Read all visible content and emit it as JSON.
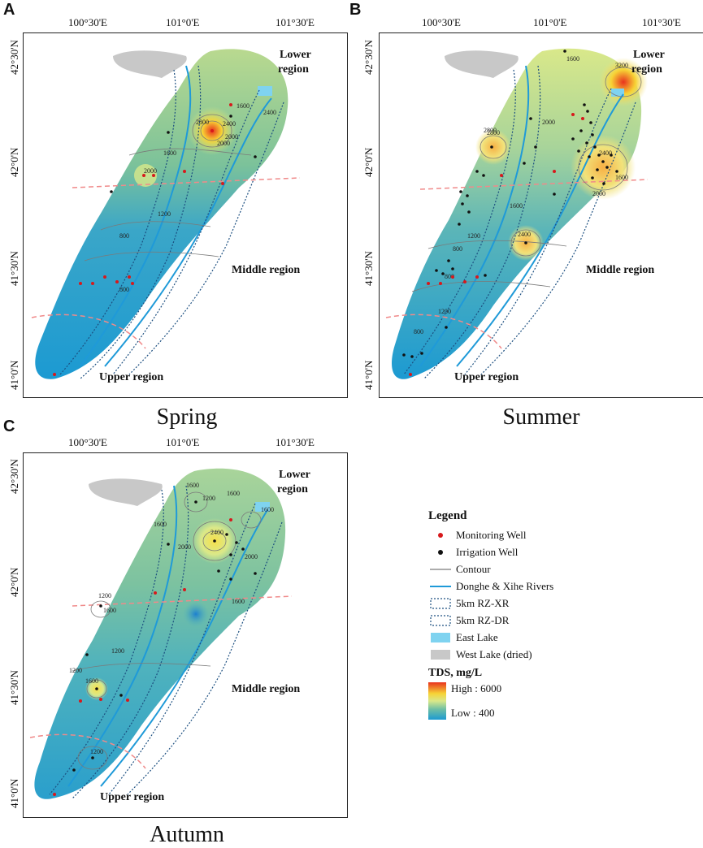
{
  "panels": [
    {
      "letter": "A",
      "season": "Spring",
      "top_ticks": [
        "100°30'E",
        "101°0'E",
        "101°30'E"
      ],
      "left_ticks": [
        "42°30'N",
        "42°0'N",
        "41°30'N",
        "41°0'N"
      ],
      "regions": {
        "lower_line1": "Lower",
        "lower_line2": "region",
        "middle": "Middle region",
        "upper": "Upper region"
      },
      "contours": [
        "1600",
        "2800",
        "2400",
        "2000",
        "1600",
        "1200",
        "800",
        "800",
        "2400",
        "2000",
        "2000"
      ]
    },
    {
      "letter": "B",
      "season": "Summer",
      "top_ticks": [
        "100°30'E",
        "101°0'E",
        "101°30'E"
      ],
      "left_ticks": [
        "42°30'N",
        "42°0'N",
        "41°30'N",
        "41°0'N"
      ],
      "regions": {
        "lower_line1": "Lower",
        "lower_line2": "region",
        "middle": "Middle region",
        "upper": "Upper region"
      },
      "contours": [
        "3200",
        "2800",
        "2400",
        "2000",
        "1600",
        "1600",
        "1200",
        "800",
        "800",
        "1200",
        "2800",
        "2400",
        "2000",
        "1600",
        "800"
      ]
    },
    {
      "letter": "C",
      "season": "Autumn",
      "top_ticks": [
        "100°30'E",
        "101°0'E",
        "101°30'E"
      ],
      "left_ticks": [
        "42°30'N",
        "42°0'N",
        "41°30'N",
        "41°0'N"
      ],
      "regions": {
        "lower_line1": "Lower",
        "lower_line2": "region",
        "middle": "Middle region",
        "upper": "Upper region"
      },
      "contours": [
        "1600",
        "1200",
        "1600",
        "1600",
        "2000",
        "2400",
        "2000",
        "1200",
        "1600",
        "1200",
        "1600",
        "1200",
        "1200",
        "1600",
        "1600"
      ]
    }
  ],
  "legend": {
    "title": "Legend",
    "items": [
      {
        "label": "Monitoring Well",
        "symbol": "red-dot"
      },
      {
        "label": "Irrigation Well",
        "symbol": "black-dot"
      },
      {
        "label": "Contour",
        "symbol": "gray-line"
      },
      {
        "label": "Donghe & Xihe  Rivers",
        "symbol": "blue-line"
      },
      {
        "label": "5km RZ-XR",
        "symbol": "dotted-box"
      },
      {
        "label": "5km RZ-DR",
        "symbol": "dotted-box"
      },
      {
        "label": "East Lake",
        "symbol": "light-blue-box"
      },
      {
        "label": "West Lake (dried)",
        "symbol": "gray-box"
      }
    ],
    "tds_title": "TDS, mg/L",
    "tds_high": "High : 6000",
    "tds_low": "Low : 400",
    "colors": {
      "monitoring": "#d7191c",
      "irrigation": "#111111",
      "river": "#1f9ad8",
      "east_lake": "#7fd3f0",
      "west_lake": "#c8c8c8",
      "contour": "#7a7a7a",
      "high": "#e8331e",
      "low": "#1c9ad2"
    }
  }
}
